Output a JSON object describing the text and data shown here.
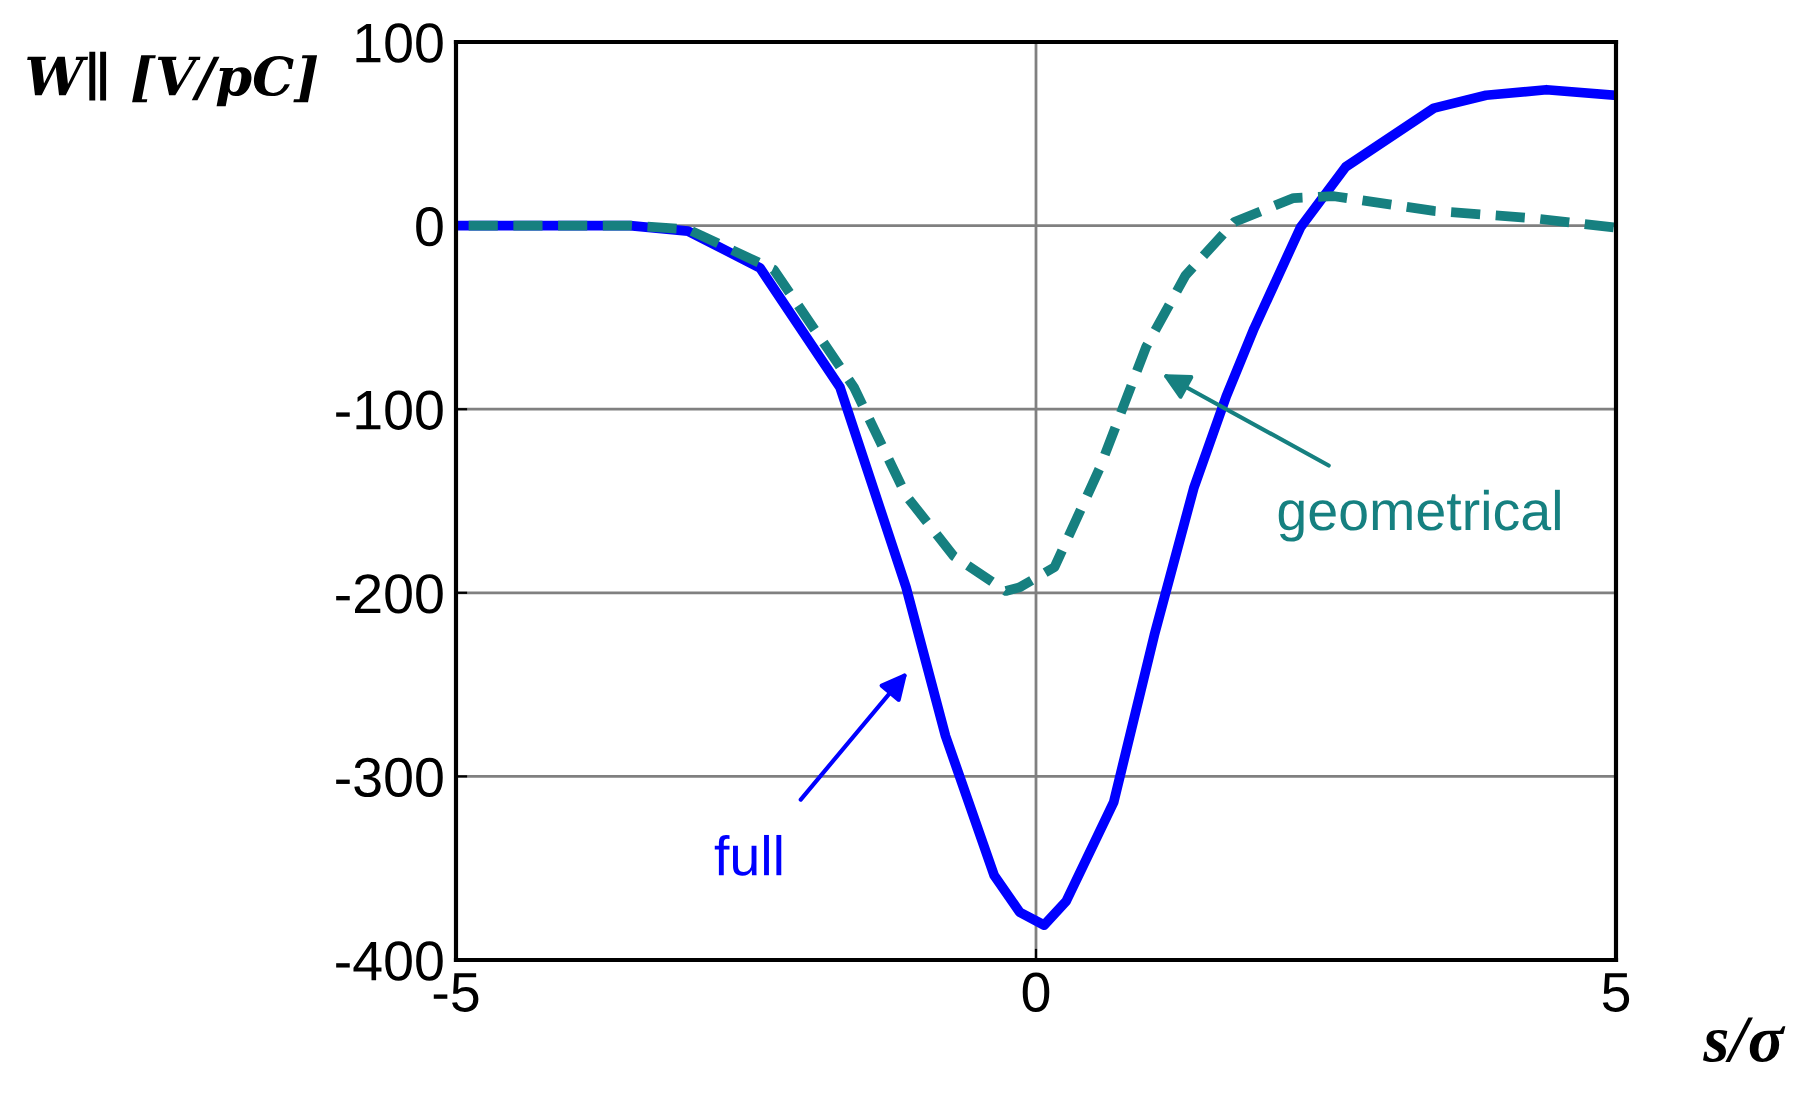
{
  "chart_data": {
    "type": "line",
    "xlabel": "s/σ",
    "ylabel": "W∥ [V/pC]",
    "xlim": [
      -5,
      5
    ],
    "ylim": [
      -400,
      100
    ],
    "xticks": [
      -5,
      0,
      5
    ],
    "yticks": [
      -400,
      -300,
      -200,
      -100,
      0,
      100
    ],
    "grid": true,
    "series": [
      {
        "name": "full",
        "color": "#0000ff",
        "line_style": "solid",
        "x": [
          -5,
          -3.5,
          -3,
          -2.38,
          -1.69,
          -1.12,
          -0.78,
          -0.36,
          -0.14,
          0.07,
          0.26,
          0.67,
          1.02,
          1.36,
          1.64,
          1.88,
          2.28,
          2.67,
          3.43,
          3.88,
          4.4,
          4.98
        ],
        "values": [
          0,
          0,
          -3,
          -23,
          -88,
          -197,
          -278,
          -354,
          -374,
          -381,
          -368,
          -314,
          -223,
          -143,
          -93,
          -56,
          -1,
          32,
          64,
          71,
          74,
          71
        ]
      },
      {
        "name": "geometrical",
        "color": "#168080",
        "line_style": "dashed",
        "x": [
          -5,
          -3.5,
          -3,
          -2.26,
          -1.57,
          -1.12,
          -0.71,
          -0.26,
          -0.14,
          0.16,
          0.55,
          0.95,
          1.29,
          1.71,
          2.22,
          2.57,
          3.43,
          4.29,
          4.98
        ],
        "values": [
          0,
          0,
          -2,
          -24,
          -88,
          -147,
          -180,
          -199,
          -197,
          -186,
          -132,
          -66,
          -27,
          2,
          15,
          16,
          8,
          4,
          -1
        ]
      }
    ]
  }
}
